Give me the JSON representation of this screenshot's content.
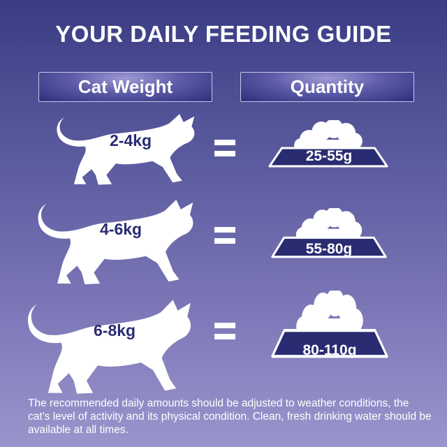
{
  "title": "YOUR DAILY FEEDING GUIDE",
  "headers": {
    "weight": "Cat Weight",
    "quantity": "Quantity"
  },
  "rows": [
    {
      "weight": "2-4kg",
      "quantity": "25-55g"
    },
    {
      "weight": "4-6kg",
      "quantity": "55-80g"
    },
    {
      "weight": "6-8kg",
      "quantity": "80-110g"
    }
  ],
  "note": "The recommended daily amounts should be adjusted to weather conditions, the cat's level of activity and its physical condition. Clean, fresh drinking water should be available at all times.",
  "colors": {
    "navy": "#2a2c72",
    "background_top": "#3a3c84",
    "background_bottom": "#9b95cc"
  }
}
